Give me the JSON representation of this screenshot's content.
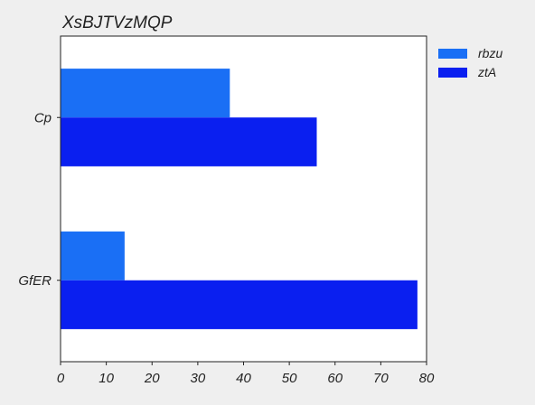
{
  "chart_data": {
    "type": "bar",
    "orientation": "horizontal",
    "title": "XsBJTVzMQP",
    "xlabel": "",
    "ylabel": "",
    "categories": [
      "Cp",
      "GfER"
    ],
    "series": [
      {
        "name": "rbzu",
        "values": [
          37,
          14
        ],
        "color": "#1a6ff5"
      },
      {
        "name": "ztA",
        "values": [
          56,
          78
        ],
        "color": "#0a1ff0"
      }
    ],
    "xlim": [
      0,
      80
    ],
    "x_ticks": [
      0,
      10,
      20,
      30,
      40,
      50,
      60,
      70,
      80
    ],
    "grid": false,
    "legend_placement": "outside-right"
  }
}
